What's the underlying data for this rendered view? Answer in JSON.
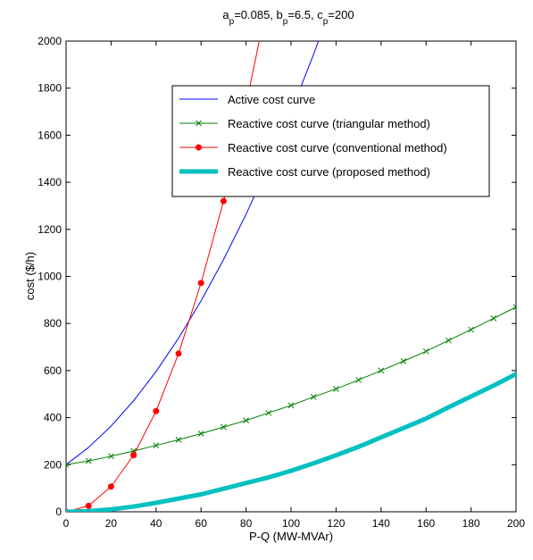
{
  "chart_data": {
    "type": "line",
    "title": {
      "parts": [
        {
          "text": "a",
          "sub": "p",
          "rest": "=0.085, "
        },
        {
          "text": "b",
          "sub": "p",
          "rest": "=6.5, "
        },
        {
          "text": "c",
          "sub": "p",
          "rest": "=200"
        }
      ]
    },
    "xlabel": "P-Q (MW-MVAr)",
    "ylabel": "cost ($/h)",
    "xlim": [
      0,
      200
    ],
    "ylim": [
      0,
      2000
    ],
    "xticks": [
      0,
      20,
      40,
      60,
      80,
      100,
      120,
      140,
      160,
      180,
      200
    ],
    "yticks": [
      0,
      200,
      400,
      600,
      800,
      1000,
      1200,
      1400,
      1600,
      1800,
      2000
    ],
    "grid": false,
    "legend_position": "upper-center",
    "series": [
      {
        "name": "Active cost curve",
        "color": "#0000ff",
        "marker": "none",
        "width": 1,
        "x": [
          0,
          10,
          20,
          30,
          40,
          50,
          60,
          70,
          80,
          90,
          100,
          110,
          120
        ],
        "y": [
          200,
          273.5,
          364,
          471.5,
          596,
          737.5,
          896,
          1071.5,
          1264,
          1473.5,
          1700,
          1943.5,
          2204
        ]
      },
      {
        "name": "Reactive cost curve (triangular method)",
        "color": "#008000",
        "marker": "x",
        "width": 1,
        "x": [
          0,
          10,
          20,
          30,
          40,
          50,
          60,
          70,
          80,
          90,
          100,
          110,
          120,
          130,
          140,
          150,
          160,
          170,
          180,
          190,
          200
        ],
        "y": [
          200,
          216,
          236,
          258,
          282,
          306,
          332,
          360,
          388,
          420,
          452,
          488,
          522,
          560,
          600,
          640,
          682,
          728,
          774,
          822,
          870
        ]
      },
      {
        "name": "Reactive cost curve (conventional method)",
        "color": "#ff0000",
        "marker": "dot",
        "width": 1,
        "x": [
          0,
          10,
          20,
          30,
          40,
          50,
          60,
          70,
          80,
          90
        ],
        "y": [
          0,
          25,
          107,
          240,
          428,
          672,
          972,
          1320,
          1730,
          2190
        ]
      },
      {
        "name": "Reactive cost curve (proposed method)",
        "color": "#00c0c0",
        "marker": "none",
        "width": 5,
        "x": [
          0,
          10,
          20,
          30,
          40,
          50,
          60,
          70,
          80,
          90,
          100,
          110,
          120,
          130,
          140,
          150,
          160,
          170,
          180,
          190,
          200
        ],
        "y": [
          0,
          3,
          10,
          22,
          38,
          56,
          74,
          98,
          122,
          146,
          174,
          206,
          240,
          276,
          316,
          356,
          396,
          444,
          490,
          536,
          585
        ]
      }
    ]
  }
}
